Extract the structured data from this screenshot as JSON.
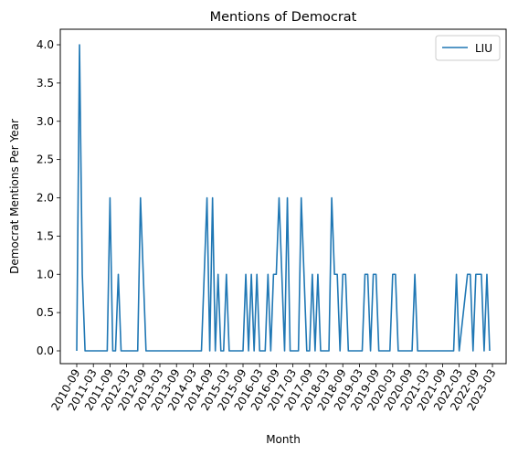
{
  "chart_data": {
    "type": "line",
    "title": "Mentions of Democrat",
    "xlabel": "Month",
    "ylabel": "Democrat Mentions Per Year",
    "ylim": [
      0,
      4.0
    ],
    "yticks": [
      "0.0",
      "0.5",
      "1.0",
      "1.5",
      "2.0",
      "2.5",
      "3.0",
      "3.5",
      "4.0"
    ],
    "xticks": [
      "2010-09",
      "2011-03",
      "2011-09",
      "2012-03",
      "2012-09",
      "2013-03",
      "2013-09",
      "2014-03",
      "2014-09",
      "2015-03",
      "2015-09",
      "2016-03",
      "2016-09",
      "2017-03",
      "2017-09",
      "2018-03",
      "2018-09",
      "2019-03",
      "2019-09",
      "2020-03",
      "2020-09",
      "2021-03",
      "2021-09",
      "2022-03",
      "2022-09",
      "2023-03"
    ],
    "legend": {
      "position": "top-right"
    },
    "grid": false,
    "series": [
      {
        "name": "LIU",
        "color": "#1f77b4",
        "points": [
          [
            "2010-09",
            0
          ],
          [
            "2010-10",
            4
          ],
          [
            "2010-11",
            1
          ],
          [
            "2010-12",
            0
          ],
          [
            "2011-01",
            0
          ],
          [
            "2011-02",
            0
          ],
          [
            "2011-03",
            0
          ],
          [
            "2011-04",
            0
          ],
          [
            "2011-05",
            0
          ],
          [
            "2011-06",
            0
          ],
          [
            "2011-07",
            0
          ],
          [
            "2011-08",
            0
          ],
          [
            "2011-09",
            2
          ],
          [
            "2011-10",
            0
          ],
          [
            "2011-11",
            0
          ],
          [
            "2011-12",
            1
          ],
          [
            "2012-01",
            0
          ],
          [
            "2012-02",
            0
          ],
          [
            "2012-03",
            0
          ],
          [
            "2012-04",
            0
          ],
          [
            "2012-05",
            0
          ],
          [
            "2012-06",
            0
          ],
          [
            "2012-07",
            0
          ],
          [
            "2012-08",
            2
          ],
          [
            "2012-09",
            1
          ],
          [
            "2012-10",
            0
          ],
          [
            "2012-11",
            0
          ],
          [
            "2012-12",
            0
          ],
          [
            "2013-01",
            0
          ],
          [
            "2013-02",
            0
          ],
          [
            "2013-03",
            0
          ],
          [
            "2013-04",
            0
          ],
          [
            "2013-05",
            0
          ],
          [
            "2013-06",
            0
          ],
          [
            "2013-07",
            0
          ],
          [
            "2013-08",
            0
          ],
          [
            "2013-09",
            0
          ],
          [
            "2013-10",
            0
          ],
          [
            "2013-11",
            0
          ],
          [
            "2013-12",
            0
          ],
          [
            "2014-01",
            0
          ],
          [
            "2014-02",
            0
          ],
          [
            "2014-03",
            0
          ],
          [
            "2014-04",
            0
          ],
          [
            "2014-05",
            0
          ],
          [
            "2014-06",
            0
          ],
          [
            "2014-07",
            1
          ],
          [
            "2014-08",
            2
          ],
          [
            "2014-09",
            0
          ],
          [
            "2014-10",
            2
          ],
          [
            "2014-11",
            0
          ],
          [
            "2014-12",
            1
          ],
          [
            "2015-01",
            0
          ],
          [
            "2015-02",
            0
          ],
          [
            "2015-03",
            1
          ],
          [
            "2015-04",
            0
          ],
          [
            "2015-05",
            0
          ],
          [
            "2015-06",
            0
          ],
          [
            "2015-07",
            0
          ],
          [
            "2015-08",
            0
          ],
          [
            "2015-09",
            0
          ],
          [
            "2015-10",
            1
          ],
          [
            "2015-11",
            0
          ],
          [
            "2015-12",
            1
          ],
          [
            "2016-01",
            0
          ],
          [
            "2016-02",
            1
          ],
          [
            "2016-03",
            0
          ],
          [
            "2016-04",
            0
          ],
          [
            "2016-05",
            0
          ],
          [
            "2016-06",
            1
          ],
          [
            "2016-07",
            0
          ],
          [
            "2016-08",
            1
          ],
          [
            "2016-09",
            1
          ],
          [
            "2016-10",
            2
          ],
          [
            "2016-11",
            1
          ],
          [
            "2016-12",
            0
          ],
          [
            "2017-01",
            2
          ],
          [
            "2017-02",
            0
          ],
          [
            "2017-03",
            0
          ],
          [
            "2017-04",
            0
          ],
          [
            "2017-05",
            0
          ],
          [
            "2017-06",
            2
          ],
          [
            "2017-07",
            1
          ],
          [
            "2017-08",
            0
          ],
          [
            "2017-09",
            0
          ],
          [
            "2017-10",
            1
          ],
          [
            "2017-11",
            0
          ],
          [
            "2017-12",
            1
          ],
          [
            "2018-01",
            0
          ],
          [
            "2018-02",
            0
          ],
          [
            "2018-03",
            0
          ],
          [
            "2018-04",
            0
          ],
          [
            "2018-05",
            2
          ],
          [
            "2018-06",
            1
          ],
          [
            "2018-07",
            1
          ],
          [
            "2018-08",
            0
          ],
          [
            "2018-09",
            1
          ],
          [
            "2018-10",
            1
          ],
          [
            "2018-11",
            0
          ],
          [
            "2018-12",
            0
          ],
          [
            "2019-01",
            0
          ],
          [
            "2019-02",
            0
          ],
          [
            "2019-03",
            0
          ],
          [
            "2019-04",
            0
          ],
          [
            "2019-05",
            1
          ],
          [
            "2019-06",
            1
          ],
          [
            "2019-07",
            0
          ],
          [
            "2019-08",
            1
          ],
          [
            "2019-09",
            1
          ],
          [
            "2019-10",
            0
          ],
          [
            "2019-11",
            0
          ],
          [
            "2019-12",
            0
          ],
          [
            "2020-01",
            0
          ],
          [
            "2020-02",
            0
          ],
          [
            "2020-03",
            1
          ],
          [
            "2020-04",
            1
          ],
          [
            "2020-05",
            0
          ],
          [
            "2020-06",
            0
          ],
          [
            "2020-07",
            0
          ],
          [
            "2020-08",
            0
          ],
          [
            "2020-09",
            0
          ],
          [
            "2020-10",
            0
          ],
          [
            "2020-11",
            1
          ],
          [
            "2020-12",
            0
          ],
          [
            "2021-01",
            0
          ],
          [
            "2021-02",
            0
          ],
          [
            "2021-03",
            0
          ],
          [
            "2021-04",
            0
          ],
          [
            "2021-05",
            0
          ],
          [
            "2021-06",
            0
          ],
          [
            "2021-07",
            0
          ],
          [
            "2021-08",
            0
          ],
          [
            "2021-09",
            0
          ],
          [
            "2021-10",
            0
          ],
          [
            "2021-11",
            0
          ],
          [
            "2021-12",
            0
          ],
          [
            "2022-01",
            0
          ],
          [
            "2022-02",
            1
          ],
          [
            "2022-03",
            0
          ],
          [
            "2022-06",
            1
          ],
          [
            "2022-07",
            1
          ],
          [
            "2022-08",
            0
          ],
          [
            "2022-09",
            1
          ],
          [
            "2022-10",
            1
          ],
          [
            "2022-11",
            1
          ],
          [
            "2022-12",
            0
          ],
          [
            "2023-01",
            1
          ],
          [
            "2023-02",
            0
          ]
        ]
      }
    ]
  }
}
